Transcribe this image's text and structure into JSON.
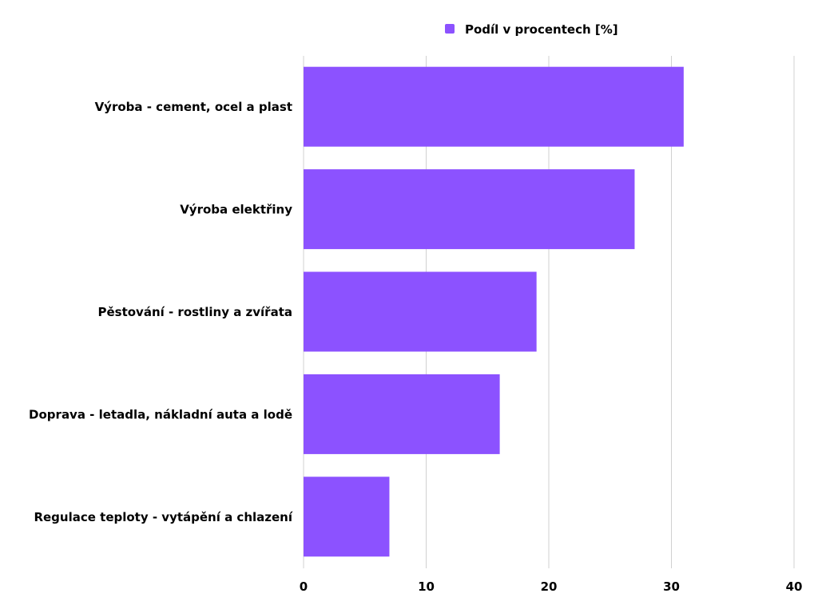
{
  "chart_data": {
    "type": "bar",
    "orientation": "horizontal",
    "categories": [
      "Výroba - cement, ocel a plast",
      "Výroba elektřiny",
      "Pěstování - rostliny a zvířata",
      "Doprava - letadla, nákladní auta a lodě",
      "Regulace teploty - vytápění a chlazení"
    ],
    "series": [
      {
        "name": "Podíl v procentech [%]",
        "values": [
          31,
          27,
          19,
          16,
          7
        ],
        "color": "#8c52ff"
      }
    ],
    "xlim": [
      0,
      40
    ],
    "xticks": [
      "0",
      "10",
      "20",
      "30",
      "40"
    ],
    "grid": true,
    "legend": "top-center"
  }
}
